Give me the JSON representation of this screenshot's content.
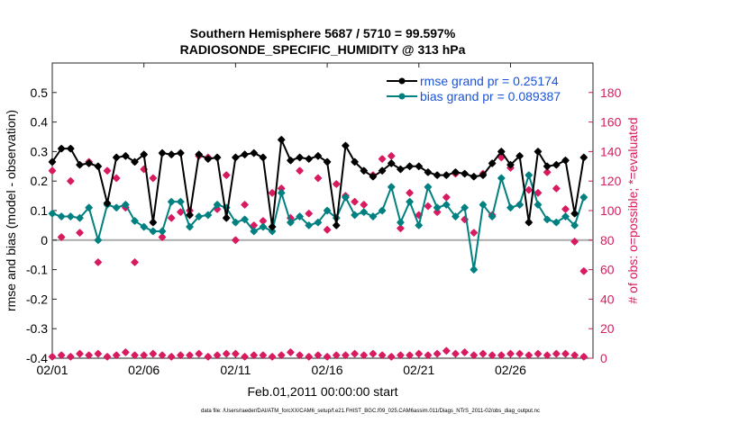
{
  "chart_data": {
    "type": "line",
    "title": "Southern Hemisphere 5687 / 5710 = 99.597%",
    "subtitle": "RADIOSONDE_SPECIFIC_HUMIDITY @ 313 hPa",
    "xlabel": "Feb.01,2011 00:00:00 start",
    "ylabel": "rmse and bias (model - observation)",
    "ylabel_right": "# of obs: o=possible; *=evaluated",
    "footer": "data file: /Users/raeder/DAI/ATM_forcXX/CAM6_setup/f.e21.FHIST_BGC.f09_025.CAM6assim.011/Diags_NTrS_2011-02/obs_diag_output.nc",
    "xlim": [
      0,
      29.5
    ],
    "ylim": [
      -0.4,
      0.6
    ],
    "ylim_right": [
      0,
      200
    ],
    "x_ticks": [
      0,
      5,
      10,
      15,
      20,
      25
    ],
    "x_tick_labels": [
      "02/01",
      "02/06",
      "02/11",
      "02/16",
      "02/21",
      "02/26"
    ],
    "y_ticks": [
      -0.4,
      -0.3,
      -0.2,
      -0.1,
      0,
      0.1,
      0.2,
      0.3,
      0.4,
      0.5
    ],
    "y_tick_labels": [
      "-0.4",
      "-0.3",
      "-0.2",
      "-0.1",
      "0",
      "0.1",
      "0.2",
      "0.3",
      "0.4",
      "0.5"
    ],
    "y_right_ticks": [
      0,
      20,
      40,
      60,
      80,
      100,
      120,
      140,
      160,
      180
    ],
    "y_right_tick_labels": [
      "0",
      "20",
      "40",
      "60",
      "80",
      "100",
      "120",
      "140",
      "160",
      "180"
    ],
    "colors": {
      "rmse": "#000000",
      "bias": "#008080",
      "obs": "#d81b60",
      "legend_text": "#1a53d6",
      "zero_line": "#aaaaaa"
    },
    "legend": [
      "rmse grand pr = 0.25174",
      "bias grand pr = 0.089387"
    ],
    "x": [
      0,
      0.5,
      1,
      1.5,
      2,
      2.5,
      3,
      3.5,
      4,
      4.5,
      5,
      5.5,
      6,
      6.5,
      7,
      7.5,
      8,
      8.5,
      9,
      9.5,
      10,
      10.5,
      11,
      11.5,
      12,
      12.5,
      13,
      13.5,
      14,
      14.5,
      15,
      15.5,
      16,
      16.5,
      17,
      17.5,
      18,
      18.5,
      19,
      19.5,
      20,
      20.5,
      21,
      21.5,
      22,
      22.5,
      23,
      23.5,
      24,
      24.5,
      25,
      25.5,
      26,
      26.5,
      27,
      27.5,
      28,
      28.5,
      29
    ],
    "series": [
      {
        "name": "rmse",
        "values": [
          0.265,
          0.31,
          0.31,
          0.255,
          0.26,
          0.25,
          0.125,
          0.28,
          0.285,
          0.265,
          0.29,
          0.06,
          0.295,
          0.29,
          0.295,
          0.085,
          0.29,
          0.275,
          0.28,
          0.075,
          0.28,
          0.29,
          0.295,
          0.28,
          0.045,
          0.34,
          0.27,
          0.28,
          0.275,
          0.285,
          0.265,
          0.05,
          0.32,
          0.265,
          0.235,
          0.215,
          0.235,
          0.26,
          0.24,
          0.25,
          0.25,
          0.23,
          0.22,
          0.22,
          0.23,
          0.225,
          0.215,
          0.22,
          0.26,
          0.3,
          0.255,
          0.285,
          0.06,
          0.3,
          0.25,
          0.255,
          0.27,
          0.09,
          0.28
        ]
      },
      {
        "name": "bias",
        "values": [
          0.09,
          0.08,
          0.08,
          0.075,
          0.11,
          0.0,
          0.12,
          0.11,
          0.12,
          0.065,
          0.045,
          0.03,
          0.03,
          0.13,
          0.13,
          0.045,
          0.08,
          0.085,
          0.12,
          0.11,
          0.06,
          0.07,
          0.03,
          0.045,
          0.03,
          0.16,
          0.06,
          0.08,
          0.05,
          0.06,
          0.1,
          0.075,
          0.145,
          0.085,
          0.095,
          0.08,
          0.1,
          0.18,
          0.06,
          0.13,
          0.05,
          0.18,
          0.11,
          0.12,
          0.08,
          0.11,
          -0.1,
          0.12,
          0.08,
          0.21,
          0.11,
          0.12,
          0.22,
          0.12,
          0.07,
          0.06,
          0.08,
          0.05,
          0.145
        ]
      },
      {
        "name": "obs_possible",
        "values": [
          127,
          82,
          120,
          85,
          133,
          65,
          127,
          122,
          102,
          65,
          128,
          122,
          82,
          95,
          99,
          100,
          137,
          136,
          101,
          124,
          80,
          104,
          90,
          93,
          112,
          115,
          95,
          127,
          98,
          122,
          87,
          118,
          110,
          106,
          104,
          124,
          135,
          137,
          88,
          112,
          97,
          103,
          99,
          109,
          125,
          94,
          85,
          125,
          97,
          136,
          129,
          104,
          114,
          112,
          126,
          115,
          101,
          79,
          59
        ]
      },
      {
        "name": "obs_evaluated",
        "values": [
          1,
          2,
          1,
          3,
          2,
          3,
          1,
          2,
          4,
          2,
          2,
          3,
          2,
          1,
          2,
          2,
          3,
          1,
          2,
          3,
          3,
          1,
          2,
          2,
          1,
          2,
          4,
          2,
          1,
          2,
          1,
          2,
          2,
          3,
          2,
          3,
          2,
          1,
          2,
          2,
          3,
          2,
          3,
          5,
          3,
          4,
          2,
          3,
          2,
          2,
          3,
          3,
          2,
          3,
          2,
          3,
          3,
          2,
          1
        ]
      }
    ]
  }
}
